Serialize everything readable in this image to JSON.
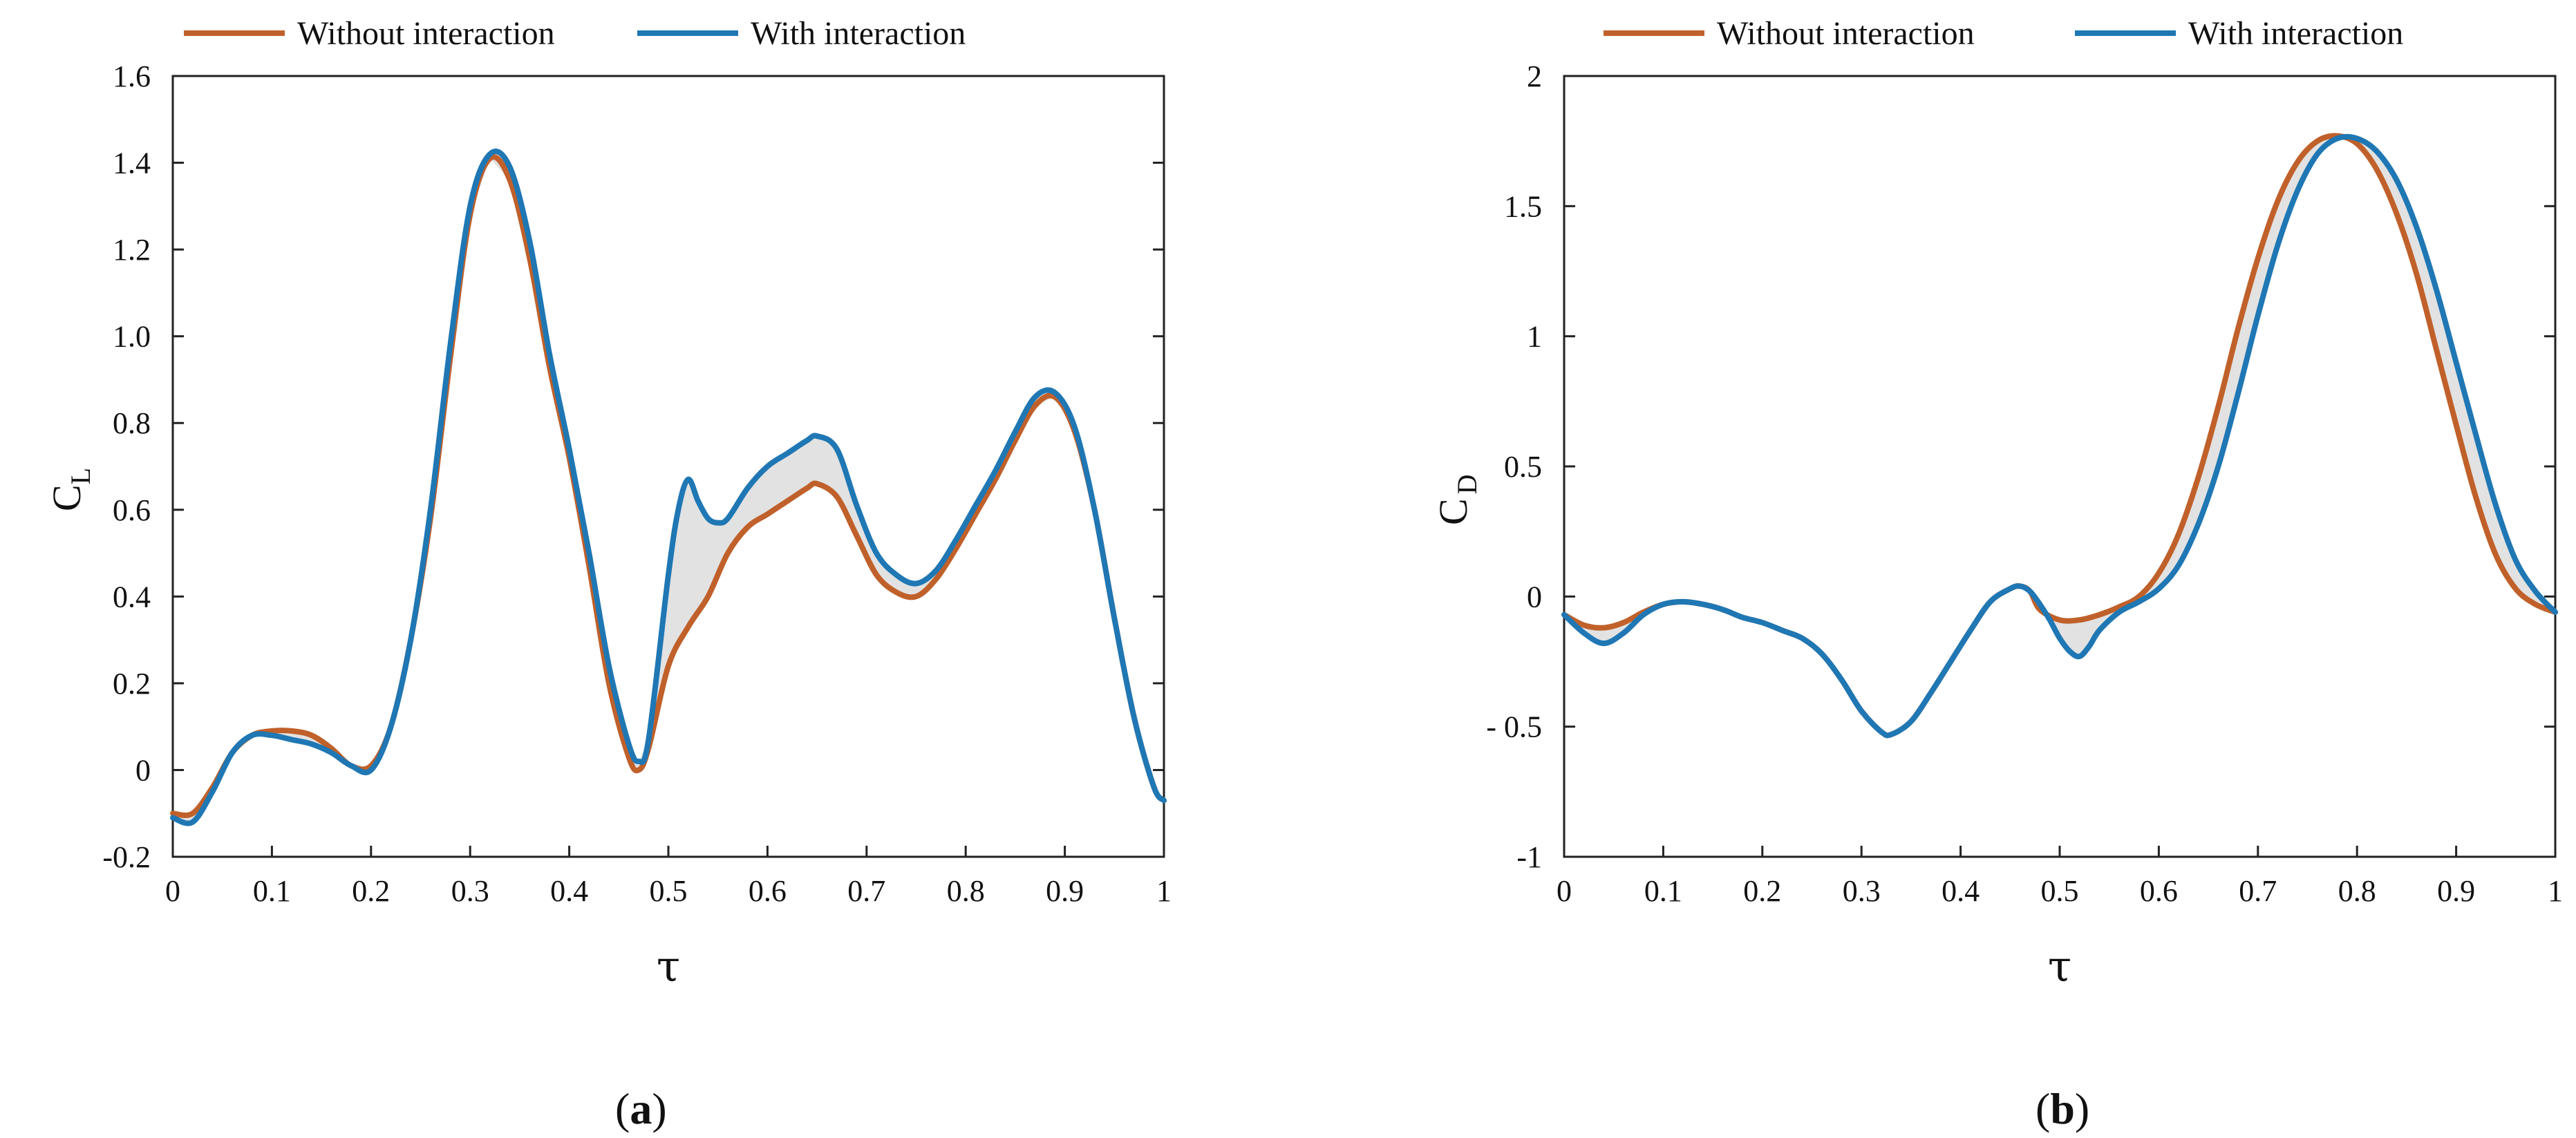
{
  "colors": {
    "without": "#c0602a",
    "with": "#1f77b4",
    "fill": "#e2e2e2",
    "axis": "#222222"
  },
  "chart_data": [
    {
      "type": "line",
      "panel": "a",
      "label_parts": [
        "(",
        "a",
        ")"
      ],
      "xlabel": "τ",
      "ylabel": "C",
      "ylabel_sub": "L",
      "xlim": [
        0,
        1
      ],
      "ylim": [
        -0.2,
        1.6
      ],
      "xticks": [
        0,
        0.1,
        0.2,
        0.3,
        0.4,
        0.5,
        0.6,
        0.7,
        0.8,
        0.9,
        1
      ],
      "xtick_labels": [
        "0",
        "0.1",
        "0.2",
        "0.3",
        "0.4",
        "0.5",
        "0.6",
        "0.7",
        "0.8",
        "0.9",
        "1"
      ],
      "yticks": [
        -0.2,
        0,
        0.2,
        0.4,
        0.6,
        0.8,
        1.0,
        1.2,
        1.4,
        1.6
      ],
      "ytick_labels": [
        "-0.2",
        "0",
        "0.2",
        "0.4",
        "0.6",
        "0.8",
        "1.0",
        "1.2",
        "1.4",
        "1.6"
      ],
      "legend": [
        "Without interaction",
        "With interaction"
      ],
      "legend_position": "top",
      "shaded_difference": true,
      "series": [
        {
          "name": "Without interaction",
          "key": "without",
          "x": [
            0,
            0.02,
            0.04,
            0.06,
            0.08,
            0.1,
            0.12,
            0.14,
            0.16,
            0.18,
            0.2,
            0.22,
            0.24,
            0.26,
            0.28,
            0.3,
            0.32,
            0.34,
            0.36,
            0.38,
            0.4,
            0.42,
            0.44,
            0.46,
            0.47,
            0.48,
            0.5,
            0.52,
            0.54,
            0.56,
            0.58,
            0.6,
            0.62,
            0.64,
            0.65,
            0.67,
            0.69,
            0.71,
            0.73,
            0.75,
            0.77,
            0.79,
            0.81,
            0.83,
            0.85,
            0.87,
            0.89,
            0.91,
            0.93,
            0.95,
            0.97,
            0.99,
            1.0
          ],
          "y": [
            -0.1,
            -0.1,
            -0.04,
            0.04,
            0.08,
            0.09,
            0.09,
            0.08,
            0.05,
            0.01,
            0.01,
            0.1,
            0.3,
            0.58,
            0.95,
            1.28,
            1.41,
            1.36,
            1.18,
            0.93,
            0.72,
            0.47,
            0.2,
            0.03,
            0.0,
            0.05,
            0.24,
            0.33,
            0.4,
            0.5,
            0.56,
            0.59,
            0.62,
            0.65,
            0.66,
            0.63,
            0.54,
            0.45,
            0.41,
            0.4,
            0.44,
            0.51,
            0.59,
            0.67,
            0.76,
            0.84,
            0.86,
            0.78,
            0.6,
            0.35,
            0.12,
            -0.04,
            -0.07
          ]
        },
        {
          "name": "With interaction",
          "key": "with",
          "x": [
            0,
            0.02,
            0.04,
            0.06,
            0.08,
            0.1,
            0.12,
            0.14,
            0.16,
            0.18,
            0.2,
            0.22,
            0.24,
            0.26,
            0.28,
            0.3,
            0.32,
            0.34,
            0.36,
            0.38,
            0.4,
            0.42,
            0.44,
            0.46,
            0.47,
            0.48,
            0.5,
            0.51,
            0.52,
            0.53,
            0.54,
            0.55,
            0.56,
            0.58,
            0.6,
            0.62,
            0.64,
            0.65,
            0.67,
            0.69,
            0.71,
            0.73,
            0.75,
            0.77,
            0.79,
            0.81,
            0.83,
            0.85,
            0.87,
            0.89,
            0.91,
            0.93,
            0.95,
            0.97,
            0.99,
            1.0
          ],
          "y": [
            -0.11,
            -0.12,
            -0.05,
            0.04,
            0.08,
            0.08,
            0.07,
            0.06,
            0.04,
            0.01,
            0.0,
            0.1,
            0.3,
            0.6,
            0.98,
            1.3,
            1.42,
            1.39,
            1.22,
            0.96,
            0.74,
            0.5,
            0.24,
            0.06,
            0.02,
            0.07,
            0.45,
            0.6,
            0.67,
            0.62,
            0.58,
            0.57,
            0.58,
            0.65,
            0.7,
            0.73,
            0.76,
            0.77,
            0.74,
            0.61,
            0.5,
            0.45,
            0.43,
            0.46,
            0.53,
            0.61,
            0.69,
            0.78,
            0.86,
            0.87,
            0.79,
            0.6,
            0.35,
            0.12,
            -0.04,
            -0.07
          ]
        }
      ]
    },
    {
      "type": "line",
      "panel": "b",
      "label_parts": [
        "(",
        "b",
        ")"
      ],
      "xlabel": "τ",
      "ylabel": "C",
      "ylabel_sub": "D",
      "xlim": [
        0,
        1
      ],
      "ylim": [
        -1,
        2
      ],
      "xticks": [
        0,
        0.1,
        0.2,
        0.3,
        0.4,
        0.5,
        0.6,
        0.7,
        0.8,
        0.9,
        1
      ],
      "xtick_labels": [
        "0",
        "0.1",
        "0.2",
        "0.3",
        "0.4",
        "0.5",
        "0.6",
        "0.7",
        "0.8",
        "0.9",
        "1"
      ],
      "yticks": [
        -1,
        -0.5,
        0,
        0.5,
        1,
        1.5,
        2
      ],
      "ytick_labels": [
        "-1",
        "- 0.5",
        "0",
        "0.5",
        "1",
        "1.5",
        "2"
      ],
      "legend": [
        "Without interaction",
        "With interaction"
      ],
      "legend_position": "top",
      "shaded_difference": true,
      "series": [
        {
          "name": "Without interaction",
          "key": "without",
          "x": [
            0,
            0.02,
            0.04,
            0.06,
            0.08,
            0.1,
            0.12,
            0.14,
            0.16,
            0.18,
            0.2,
            0.22,
            0.24,
            0.26,
            0.28,
            0.3,
            0.32,
            0.33,
            0.35,
            0.37,
            0.39,
            0.41,
            0.43,
            0.45,
            0.46,
            0.47,
            0.48,
            0.5,
            0.52,
            0.54,
            0.56,
            0.58,
            0.6,
            0.62,
            0.64,
            0.66,
            0.68,
            0.7,
            0.72,
            0.74,
            0.76,
            0.78,
            0.8,
            0.82,
            0.84,
            0.86,
            0.88,
            0.9,
            0.92,
            0.94,
            0.96,
            0.98,
            1.0
          ],
          "y": [
            -0.07,
            -0.11,
            -0.12,
            -0.1,
            -0.06,
            -0.03,
            -0.02,
            -0.03,
            -0.05,
            -0.08,
            -0.1,
            -0.13,
            -0.16,
            -0.22,
            -0.32,
            -0.44,
            -0.52,
            -0.53,
            -0.48,
            -0.37,
            -0.25,
            -0.13,
            -0.02,
            0.03,
            0.04,
            0.02,
            -0.05,
            -0.09,
            -0.09,
            -0.07,
            -0.04,
            0.0,
            0.09,
            0.24,
            0.46,
            0.73,
            1.03,
            1.3,
            1.52,
            1.67,
            1.75,
            1.77,
            1.74,
            1.64,
            1.47,
            1.24,
            0.95,
            0.66,
            0.38,
            0.16,
            0.03,
            -0.03,
            -0.06
          ]
        },
        {
          "name": "With interaction",
          "key": "with",
          "x": [
            0,
            0.02,
            0.04,
            0.06,
            0.08,
            0.1,
            0.12,
            0.14,
            0.16,
            0.18,
            0.2,
            0.22,
            0.24,
            0.26,
            0.28,
            0.3,
            0.32,
            0.33,
            0.35,
            0.37,
            0.39,
            0.41,
            0.43,
            0.45,
            0.46,
            0.47,
            0.48,
            0.49,
            0.5,
            0.51,
            0.52,
            0.53,
            0.54,
            0.56,
            0.58,
            0.6,
            0.62,
            0.64,
            0.66,
            0.68,
            0.7,
            0.72,
            0.74,
            0.76,
            0.78,
            0.8,
            0.82,
            0.84,
            0.86,
            0.88,
            0.9,
            0.92,
            0.94,
            0.96,
            0.98,
            1.0
          ],
          "y": [
            -0.07,
            -0.14,
            -0.18,
            -0.14,
            -0.07,
            -0.03,
            -0.02,
            -0.03,
            -0.05,
            -0.08,
            -0.1,
            -0.13,
            -0.16,
            -0.22,
            -0.32,
            -0.44,
            -0.52,
            -0.53,
            -0.48,
            -0.37,
            -0.25,
            -0.13,
            -0.02,
            0.03,
            0.04,
            0.02,
            -0.03,
            -0.09,
            -0.16,
            -0.21,
            -0.23,
            -0.19,
            -0.13,
            -0.06,
            -0.02,
            0.03,
            0.12,
            0.28,
            0.5,
            0.78,
            1.08,
            1.35,
            1.56,
            1.7,
            1.76,
            1.76,
            1.71,
            1.6,
            1.42,
            1.18,
            0.9,
            0.62,
            0.35,
            0.14,
            0.02,
            -0.06
          ]
        }
      ]
    }
  ]
}
